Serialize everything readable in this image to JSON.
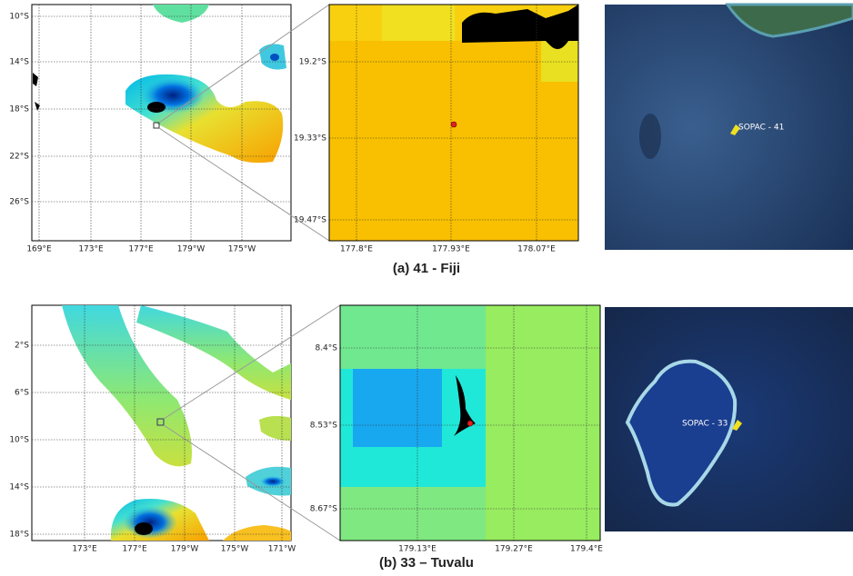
{
  "panels": [
    {
      "map": {
        "y_labels": [
          "10°S",
          "14°S",
          "18°S",
          "22°S",
          "26°S"
        ],
        "x_labels": [
          "169°E",
          "173°E",
          "177°E",
          "179°W",
          "175°W"
        ]
      },
      "zoom": {
        "y_labels": [
          "19.2°S",
          "19.33°S",
          "19.47°S"
        ],
        "x_labels": [
          "177.8°E",
          "177.93°E",
          "178.07°E"
        ]
      },
      "satellite": {
        "marker_label": "SOPAC - 41"
      },
      "caption": "(a) 41 - Fiji"
    },
    {
      "map": {
        "y_labels": [
          "2°S",
          "6°S",
          "10°S",
          "14°S",
          "18°S"
        ],
        "x_labels": [
          "173°E",
          "177°E",
          "179°W",
          "175°W",
          "171°W"
        ]
      },
      "zoom": {
        "y_labels": [
          "8.4°S",
          "8.53°S",
          "8.67°S"
        ],
        "x_labels": [
          "179.13°E",
          "179.27°E",
          "179.4°E"
        ]
      },
      "satellite": {
        "marker_label": "SOPAC - 33"
      },
      "caption": "(b) 33 – Tuvalu"
    }
  ]
}
